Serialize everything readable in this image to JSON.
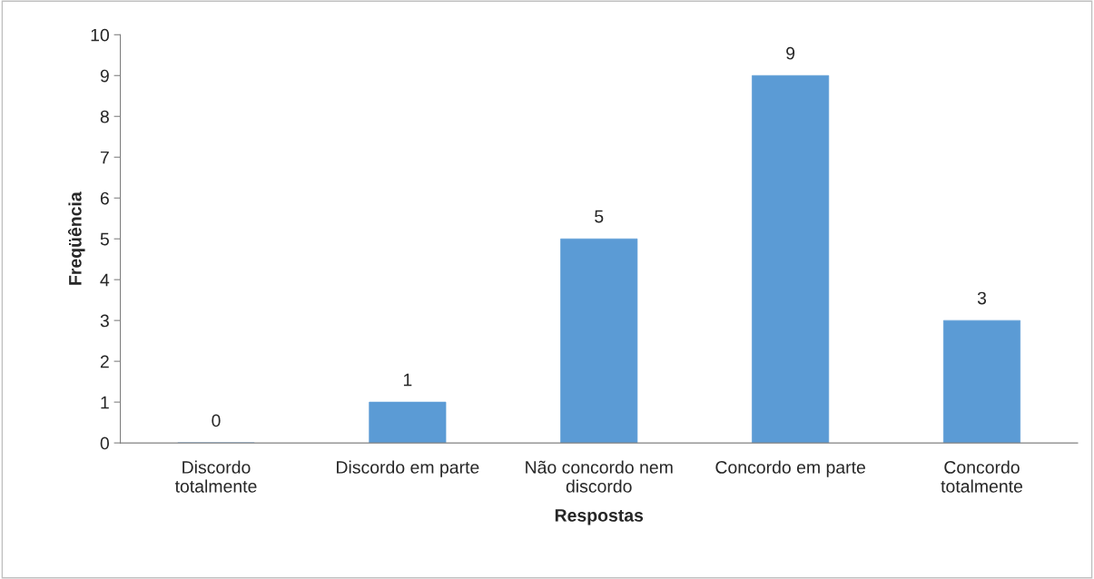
{
  "chart_data": {
    "type": "bar",
    "xlabel": "Respostas",
    "ylabel": "Freqüência",
    "categories": [
      "Discordo\ntotalmente",
      "Discordo em parte",
      "Não concordo nem\ndiscordo",
      "Concordo em parte",
      "Concordo\ntotalmente"
    ],
    "values": [
      0,
      1,
      5,
      9,
      3
    ],
    "color": "#5b9bd5",
    "ylim": [
      0,
      10
    ],
    "yticks": [
      0,
      1,
      2,
      3,
      4,
      5,
      6,
      7,
      8,
      9,
      10
    ],
    "grid": false,
    "data_labels": true
  }
}
